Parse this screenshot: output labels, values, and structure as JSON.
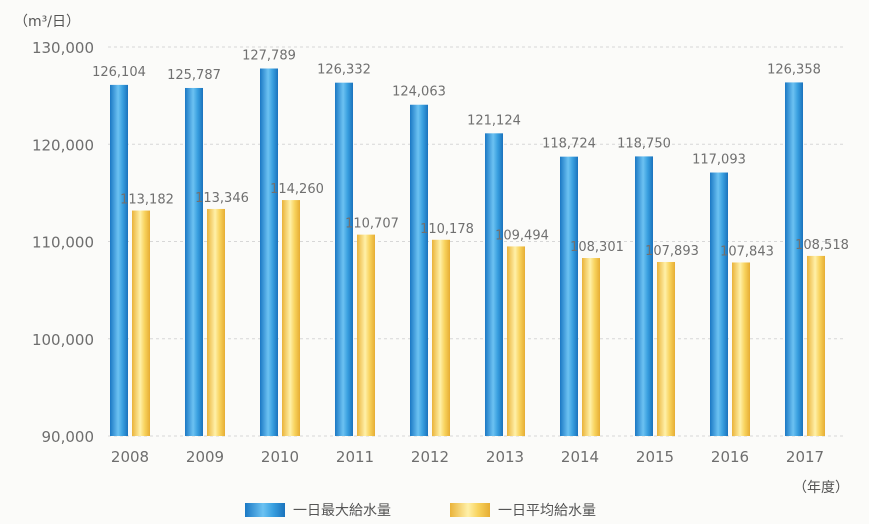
{
  "chart_data": {
    "type": "bar",
    "unit_label": "（m³/日）",
    "x_unit_label": "（年度）",
    "categories": [
      "2008",
      "2009",
      "2010",
      "2011",
      "2012",
      "2013",
      "2014",
      "2015",
      "2016",
      "2017"
    ],
    "series": [
      {
        "name": "一日最大給水量",
        "values": [
          126104,
          125787,
          127789,
          126332,
          124063,
          121124,
          118724,
          118750,
          117093,
          126358
        ],
        "labels": [
          "126,104",
          "125,787",
          "127,789",
          "126,332",
          "124,063",
          "121,124",
          "118,724",
          "118,750",
          "117,093",
          "126,358"
        ],
        "color": "#2a8fd6"
      },
      {
        "name": "一日平均給水量",
        "values": [
          113182,
          113346,
          114260,
          110707,
          110178,
          109494,
          108301,
          107893,
          107843,
          108518
        ],
        "labels": [
          "113,182",
          "113,346",
          "114,260",
          "110,707",
          "110,178",
          "109,494",
          "108,301",
          "107,893",
          "107,843",
          "108,518"
        ],
        "color": "#f4c64a"
      }
    ],
    "ylim": [
      90000,
      130000
    ],
    "yticks": [
      90000,
      100000,
      110000,
      120000,
      130000
    ],
    "ytick_labels": [
      "90,000",
      "100,000",
      "110,000",
      "120,000",
      "130,000"
    ],
    "grid": true,
    "legend_position": "bottom"
  }
}
